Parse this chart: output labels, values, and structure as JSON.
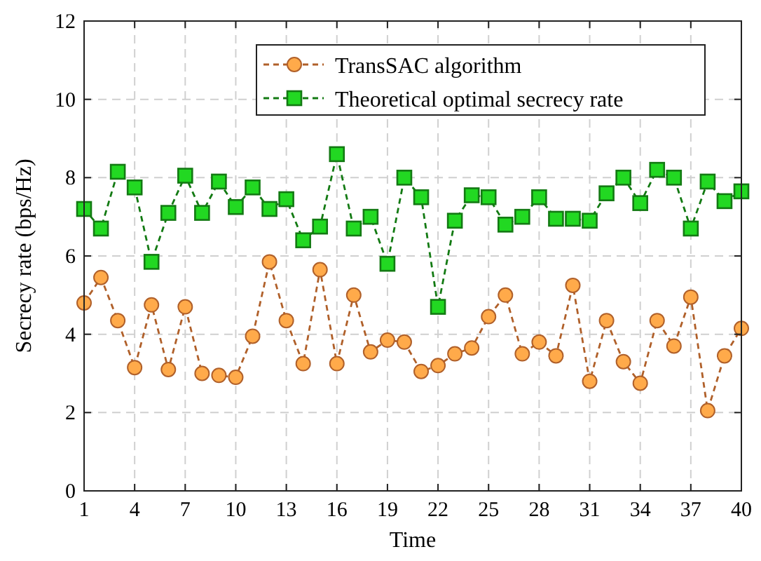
{
  "chart_data": {
    "type": "line",
    "xlabel": "Time",
    "ylabel": "Secrecy rate (bps/Hz)",
    "x": [
      1,
      2,
      3,
      4,
      5,
      6,
      7,
      8,
      9,
      10,
      11,
      12,
      13,
      14,
      15,
      16,
      17,
      18,
      19,
      20,
      21,
      22,
      23,
      24,
      25,
      26,
      27,
      28,
      29,
      30,
      31,
      32,
      33,
      34,
      35,
      36,
      37,
      38,
      39,
      40
    ],
    "series": [
      {
        "name": "TransSAC algorithm",
        "color": "#b0602a",
        "marker": "circle",
        "values": [
          4.8,
          5.45,
          4.35,
          3.15,
          4.75,
          3.1,
          4.7,
          3.0,
          2.95,
          2.9,
          3.95,
          5.85,
          4.35,
          3.25,
          5.65,
          3.25,
          5.0,
          3.55,
          3.85,
          3.8,
          3.05,
          3.2,
          3.5,
          3.65,
          4.45,
          5.0,
          3.5,
          3.8,
          3.45,
          5.25,
          2.8,
          4.35,
          3.3,
          2.75,
          4.35,
          3.7,
          4.95,
          2.05,
          3.45,
          4.15
        ]
      },
      {
        "name": "Theoretical optimal secrecy rate",
        "color": "#137a13",
        "marker": "square",
        "values": [
          7.2,
          6.7,
          8.15,
          7.75,
          5.85,
          7.1,
          8.05,
          7.1,
          7.9,
          7.25,
          7.75,
          7.2,
          7.45,
          6.4,
          6.75,
          8.6,
          6.7,
          7.0,
          5.8,
          8.0,
          7.5,
          4.7,
          6.9,
          7.55,
          7.5,
          6.8,
          7.0,
          7.5,
          6.95,
          6.95,
          6.9,
          7.6,
          8.0,
          7.35,
          8.2,
          8.0,
          6.7,
          7.9,
          7.4,
          7.65
        ]
      }
    ],
    "xlim": [
      1,
      40
    ],
    "xticks": [
      1,
      4,
      7,
      10,
      13,
      16,
      19,
      22,
      25,
      28,
      31,
      34,
      37,
      40
    ],
    "ylim": [
      0,
      12
    ],
    "yticks": [
      0,
      2,
      4,
      6,
      8,
      10,
      12
    ],
    "grid": true,
    "legend": "top right",
    "line_style": "dashed"
  }
}
